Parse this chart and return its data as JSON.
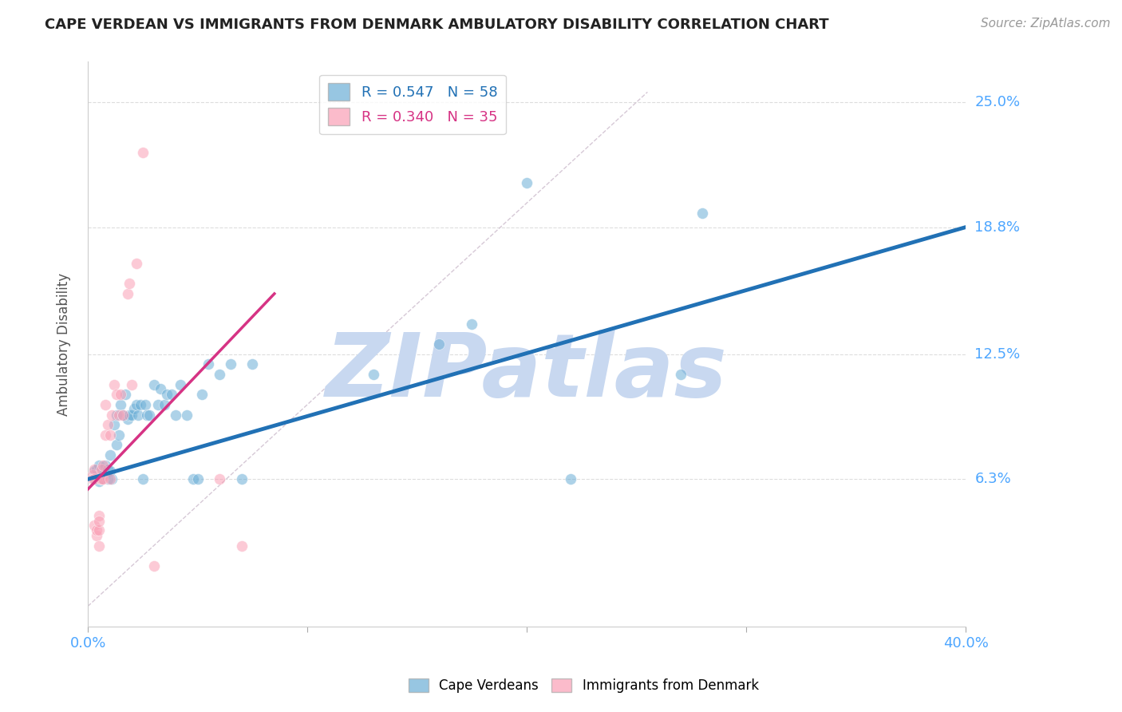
{
  "title": "CAPE VERDEAN VS IMMIGRANTS FROM DENMARK AMBULATORY DISABILITY CORRELATION CHART",
  "source": "Source: ZipAtlas.com",
  "ylabel": "Ambulatory Disability",
  "xlim": [
    0.0,
    0.4
  ],
  "ylim": [
    -0.01,
    0.27
  ],
  "x_ticks": [
    0.0,
    0.1,
    0.2,
    0.3,
    0.4
  ],
  "y_ticks": [
    0.063,
    0.125,
    0.188,
    0.25
  ],
  "y_tick_labels": [
    "6.3%",
    "12.5%",
    "18.8%",
    "25.0%"
  ],
  "R_blue": 0.547,
  "N_blue": 58,
  "R_pink": 0.34,
  "N_pink": 35,
  "blue_color": "#6baed6",
  "pink_color": "#fa9fb5",
  "blue_line_color": "#2171b5",
  "pink_line_color": "#d63384",
  "watermark": "ZIPatlas",
  "watermark_color": "#c8d8f0",
  "blue_scatter_x": [
    0.003,
    0.003,
    0.004,
    0.005,
    0.005,
    0.006,
    0.006,
    0.007,
    0.007,
    0.008,
    0.008,
    0.009,
    0.009,
    0.01,
    0.01,
    0.011,
    0.012,
    0.013,
    0.013,
    0.014,
    0.015,
    0.016,
    0.017,
    0.018,
    0.019,
    0.02,
    0.021,
    0.022,
    0.023,
    0.024,
    0.025,
    0.026,
    0.027,
    0.028,
    0.03,
    0.032,
    0.033,
    0.035,
    0.036,
    0.038,
    0.04,
    0.042,
    0.045,
    0.048,
    0.05,
    0.052,
    0.055,
    0.06,
    0.065,
    0.07,
    0.075,
    0.13,
    0.16,
    0.175,
    0.2,
    0.22,
    0.27,
    0.28
  ],
  "blue_scatter_y": [
    0.067,
    0.063,
    0.068,
    0.062,
    0.07,
    0.063,
    0.065,
    0.065,
    0.068,
    0.065,
    0.07,
    0.068,
    0.063,
    0.067,
    0.075,
    0.063,
    0.09,
    0.095,
    0.08,
    0.085,
    0.1,
    0.095,
    0.105,
    0.093,
    0.095,
    0.095,
    0.098,
    0.1,
    0.095,
    0.1,
    0.063,
    0.1,
    0.095,
    0.095,
    0.11,
    0.1,
    0.108,
    0.1,
    0.105,
    0.105,
    0.095,
    0.11,
    0.095,
    0.063,
    0.063,
    0.105,
    0.12,
    0.115,
    0.12,
    0.063,
    0.12,
    0.115,
    0.13,
    0.14,
    0.21,
    0.063,
    0.115,
    0.195
  ],
  "pink_scatter_x": [
    0.002,
    0.002,
    0.003,
    0.003,
    0.003,
    0.004,
    0.004,
    0.005,
    0.005,
    0.005,
    0.005,
    0.006,
    0.006,
    0.006,
    0.007,
    0.007,
    0.008,
    0.008,
    0.009,
    0.01,
    0.01,
    0.011,
    0.012,
    0.013,
    0.014,
    0.015,
    0.016,
    0.018,
    0.019,
    0.02,
    0.022,
    0.025,
    0.03,
    0.06,
    0.07
  ],
  "pink_scatter_y": [
    0.065,
    0.063,
    0.063,
    0.068,
    0.04,
    0.035,
    0.038,
    0.03,
    0.038,
    0.045,
    0.042,
    0.063,
    0.068,
    0.063,
    0.063,
    0.07,
    0.085,
    0.1,
    0.09,
    0.063,
    0.085,
    0.095,
    0.11,
    0.105,
    0.095,
    0.105,
    0.095,
    0.155,
    0.16,
    0.11,
    0.17,
    0.225,
    0.02,
    0.063,
    0.03
  ],
  "blue_regline_x": [
    0.0,
    0.4
  ],
  "blue_regline_y": [
    0.063,
    0.188
  ],
  "pink_regline_x": [
    0.0,
    0.085
  ],
  "pink_regline_y": [
    0.058,
    0.155
  ],
  "diag_line_x": [
    0.0,
    0.255
  ],
  "diag_line_y": [
    0.0,
    0.255
  ]
}
